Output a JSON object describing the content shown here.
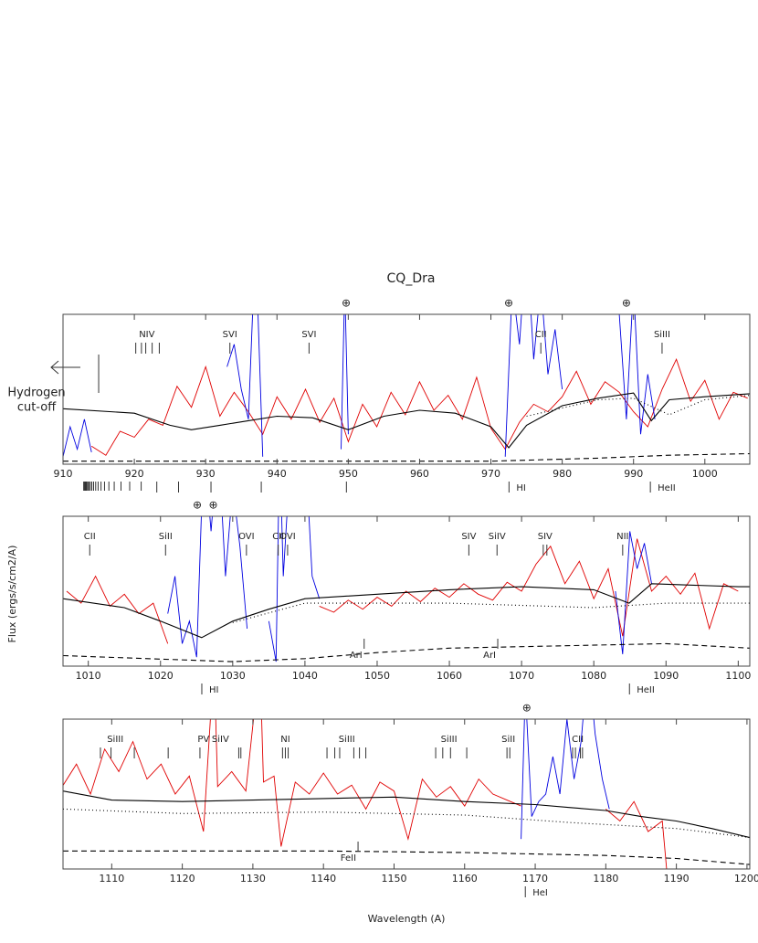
{
  "title": "CQ_Dra",
  "ylabel": "Flux (ergs/s/cm2/A)",
  "xlabel": "Wavelength (A)",
  "hydrogen_cutoff": {
    "label": [
      "Hydrogen",
      "cut-off"
    ],
    "x": 915
  },
  "chart_data": [
    {
      "type": "line",
      "xlim": [
        910,
        1006.3
      ],
      "ylim": [
        0,
        10
      ],
      "xticks": [
        910,
        920,
        930,
        940,
        950,
        960,
        970,
        980,
        990,
        1000
      ],
      "series": [
        {
          "color": "#e00000",
          "style": "solid",
          "x": [
            914,
            916,
            918,
            920,
            922,
            924,
            926,
            928,
            930,
            932,
            934,
            936,
            938,
            940,
            942,
            944,
            946,
            948,
            950,
            952,
            954,
            956,
            958,
            960,
            962,
            964,
            966,
            968,
            970,
            972,
            974,
            976,
            978,
            980,
            982,
            984,
            986,
            988,
            990,
            992,
            994,
            996,
            998,
            1000,
            1002,
            1004,
            1006
          ],
          "values": [
            1.2,
            0.6,
            2.2,
            1.8,
            3.0,
            2.6,
            5.2,
            3.8,
            6.5,
            3.2,
            4.8,
            3.5,
            2.0,
            4.5,
            3.0,
            5.0,
            2.8,
            4.4,
            1.5,
            4.0,
            2.5,
            4.8,
            3.3,
            5.5,
            3.6,
            4.6,
            3.0,
            5.8,
            2.4,
            1.0,
            2.8,
            4.0,
            3.5,
            4.5,
            6.2,
            4.0,
            5.5,
            4.8,
            3.5,
            2.5,
            5.0,
            7.0,
            4.2,
            5.6,
            3.0,
            4.8,
            4.4
          ]
        },
        {
          "color": "#0000e0",
          "style": "solid",
          "x": [
            910,
            911,
            912,
            913,
            914,
            915,
            933,
            934,
            935,
            936,
            937,
            938,
            939,
            949,
            949.5,
            950,
            951,
            972,
            973,
            974,
            975,
            976,
            977,
            978,
            979,
            980,
            981,
            988,
            989,
            990,
            991,
            992,
            993,
            994
          ],
          "values": [
            0.5,
            2.5,
            1.0,
            3.0,
            0.8,
            null,
            6.5,
            8.0,
            5.0,
            3.0,
            15,
            0.5,
            null,
            1.0,
            12,
            2.0,
            null,
            0.5,
            12,
            8,
            15,
            7,
            12,
            6,
            9,
            5,
            null,
            10,
            3,
            12,
            2,
            6,
            3,
            null
          ]
        },
        {
          "color": "#000000",
          "style": "solid",
          "x": [
            910,
            920,
            925,
            928,
            932,
            936,
            940,
            945,
            950,
            955,
            960,
            965,
            970,
            972.5,
            975,
            980,
            985,
            990,
            992.5,
            995,
            1000,
            1006.3
          ],
          "values": [
            3.7,
            3.4,
            2.6,
            2.3,
            2.6,
            2.9,
            3.2,
            3.1,
            2.3,
            3.2,
            3.6,
            3.4,
            2.5,
            1.1,
            2.6,
            3.9,
            4.4,
            4.75,
            2.9,
            4.3,
            4.5,
            4.7
          ]
        },
        {
          "color": "#000000",
          "style": "dotted",
          "x": [
            975,
            985,
            990,
            995,
            1000,
            1006.3
          ],
          "values": [
            3.2,
            4.3,
            4.4,
            3.3,
            4.3,
            4.6
          ]
        },
        {
          "color": "#000000",
          "style": "dashed",
          "x": [
            910,
            940,
            970,
            985,
            995,
            1006.3
          ],
          "values": [
            0.2,
            0.2,
            0.2,
            0.4,
            0.6,
            0.7
          ]
        }
      ],
      "lines_above": [
        {
          "label": "NIV",
          "x": [
            920.2,
            921,
            921.6,
            922.5,
            923.5
          ]
        },
        {
          "label": "SVI",
          "x": [
            933.4
          ]
        },
        {
          "label": "SVI",
          "x": [
            944.5
          ]
        },
        {
          "label": "CII",
          "x": [
            977
          ]
        },
        {
          "label": "SiIII",
          "x": [
            994
          ]
        }
      ],
      "telluric": {
        "label": "⊕",
        "x": [
          949.7,
          972.5,
          989
        ]
      },
      "lines_low": [],
      "lines_below": [
        {
          "label": "HI",
          "x": [
            972.54,
            949.74,
            937.8,
            930.75,
            926.2,
            923.15,
            920.96,
            919.35,
            918.13,
            917.18,
            916.43,
            915.82,
            915.33,
            914.92,
            914.58,
            914.29,
            914.04,
            913.83,
            913.64,
            913.48,
            913.33,
            913.2,
            913.09,
            912.99,
            912.9
          ]
        },
        {
          "label": "HeII",
          "x": [
            992.36
          ]
        }
      ]
    },
    {
      "type": "line",
      "xlim": [
        1006.5,
        1101.6
      ],
      "ylim": [
        0,
        10
      ],
      "xticks": [
        1010,
        1020,
        1030,
        1040,
        1050,
        1060,
        1070,
        1080,
        1090,
        1100
      ],
      "series": [
        {
          "color": "#e00000",
          "style": "solid",
          "x": [
            1007,
            1009,
            1011,
            1013,
            1015,
            1017,
            1019,
            1021,
            1023,
            1042,
            1044,
            1046,
            1048,
            1050,
            1052,
            1054,
            1056,
            1058,
            1060,
            1062,
            1064,
            1066,
            1068,
            1070,
            1072,
            1074,
            1076,
            1078,
            1080,
            1082,
            1084,
            1086,
            1088,
            1090,
            1092,
            1094,
            1096,
            1098,
            1100
          ],
          "values": [
            5.0,
            4.2,
            6.0,
            4.0,
            4.8,
            3.5,
            4.2,
            1.5,
            null,
            4.0,
            3.6,
            4.4,
            3.8,
            4.6,
            4.0,
            5.0,
            4.3,
            5.2,
            4.6,
            5.5,
            4.8,
            4.4,
            5.6,
            5.0,
            6.8,
            8.0,
            5.5,
            7.0,
            4.5,
            6.5,
            2.0,
            8.5,
            5.0,
            6.0,
            4.8,
            6.2,
            2.5,
            5.5,
            5.0
          ]
        },
        {
          "color": "#0000e0",
          "style": "solid",
          "x": [
            1021,
            1022,
            1023,
            1024,
            1025,
            1026,
            1027,
            1028,
            1029,
            1030,
            1031,
            1032,
            1033,
            1035,
            1036,
            1036.5,
            1037,
            1038,
            1039,
            1040,
            1041,
            1042,
            1043,
            1083,
            1084,
            1085,
            1086,
            1087,
            1088
          ],
          "values": [
            3.5,
            6,
            1.5,
            3,
            0.6,
            15,
            9,
            15,
            6,
            12,
            8,
            2.5,
            null,
            3,
            0.3,
            15,
            6,
            14,
            10,
            15,
            6,
            4.5,
            null,
            5,
            0.8,
            9,
            6.5,
            8.2,
            5.5
          ]
        },
        {
          "color": "#000000",
          "style": "solid",
          "x": [
            1006.5,
            1015,
            1020,
            1025.7,
            1030,
            1035,
            1040,
            1050,
            1060,
            1070,
            1080,
            1084.9,
            1088,
            1100,
            1101.6
          ],
          "values": [
            4.5,
            3.9,
            3.0,
            1.9,
            3.0,
            3.8,
            4.5,
            4.8,
            5.1,
            5.3,
            5.1,
            4.2,
            5.5,
            5.3,
            5.3
          ]
        },
        {
          "color": "#000000",
          "style": "dotted",
          "x": [
            1030,
            1040,
            1060,
            1080,
            1090,
            1101.6
          ],
          "values": [
            2.9,
            4.2,
            4.2,
            3.9,
            4.2,
            4.2
          ]
        },
        {
          "color": "#000000",
          "style": "dashed",
          "x": [
            1006.5,
            1030,
            1040,
            1050,
            1060,
            1070,
            1090,
            1101.6
          ],
          "values": [
            0.7,
            0.3,
            0.5,
            0.9,
            1.2,
            1.3,
            1.5,
            1.2
          ]
        }
      ],
      "lines_above": [
        {
          "label": "CII",
          "x": [
            1010.2
          ]
        },
        {
          "label": "SiII",
          "x": [
            1020.7
          ]
        },
        {
          "label": "OVI",
          "x": [
            1031.9
          ]
        },
        {
          "label": "CII",
          "x": [
            1036.3
          ]
        },
        {
          "label": "OVI",
          "x": [
            1037.6
          ]
        },
        {
          "label": "SIV",
          "x": [
            1062.7
          ]
        },
        {
          "label": "SiIV",
          "x": [
            1066.6
          ]
        },
        {
          "label": "SIV",
          "x": [
            1073.0,
            1073.5
          ]
        },
        {
          "label": "NII",
          "x": [
            1084
          ]
        }
      ],
      "telluric": {
        "label": "⊕",
        "x": [
          1025.1,
          1027.3
        ]
      },
      "lines_low": [
        {
          "label": "ArI",
          "x": [
            1048.2
          ]
        },
        {
          "label": "ArI",
          "x": [
            1066.7
          ]
        }
      ],
      "lines_below": [
        {
          "label": "HI",
          "x": [
            1025.72
          ]
        },
        {
          "label": "HeII",
          "x": [
            1084.94
          ]
        }
      ]
    },
    {
      "type": "line",
      "xlim": [
        1103.1,
        1200.4
      ],
      "ylim": [
        0,
        10
      ],
      "xticks": [
        1110,
        1120,
        1130,
        1140,
        1150,
        1160,
        1170,
        1180,
        1190,
        1200
      ],
      "series": [
        {
          "color": "#e00000",
          "style": "solid",
          "x": [
            1103,
            1105,
            1107,
            1109,
            1111,
            1113,
            1115,
            1117,
            1119,
            1121,
            1123,
            1124.5,
            1125,
            1127,
            1129,
            1131,
            1131.5,
            1133,
            1134,
            1136,
            1138,
            1140,
            1142,
            1144,
            1146,
            1148,
            1150,
            1152,
            1154,
            1156,
            1158,
            1160,
            1162,
            1164,
            1166,
            1168,
            1170,
            1180,
            1182,
            1184,
            1186,
            1188,
            1189,
            1190
          ],
          "values": [
            5.5,
            7.0,
            5.0,
            8.0,
            6.5,
            8.5,
            6.0,
            7.0,
            5.0,
            6.2,
            2.5,
            14,
            5.5,
            6.5,
            5.2,
            14,
            5.8,
            6.2,
            1.5,
            5.8,
            5.0,
            6.4,
            5.0,
            5.6,
            4.0,
            5.8,
            5.2,
            2.0,
            6.0,
            4.8,
            5.5,
            4.2,
            6.0,
            5.0,
            4.6,
            4.2,
            null,
            4.0,
            3.2,
            4.5,
            2.5,
            3.2,
            -2,
            null
          ]
        },
        {
          "color": "#0000e0",
          "style": "solid",
          "x": [
            1168,
            1168.6,
            1169.5,
            1170.5,
            1171.5,
            1172.5,
            1173.5,
            1174.5,
            1175.5,
            1176.5,
            1177.5,
            1178.5,
            1179.5,
            1180.5
          ],
          "values": [
            2,
            12,
            3.5,
            4.5,
            5.0,
            7.5,
            5,
            10,
            6,
            8.5,
            14,
            9,
            6,
            4.0
          ]
        },
        {
          "color": "#000000",
          "style": "solid",
          "x": [
            1103.1,
            1110,
            1120,
            1130,
            1140,
            1150,
            1160,
            1170,
            1175,
            1180,
            1185,
            1190,
            1195,
            1200.4
          ],
          "values": [
            5.2,
            4.6,
            4.5,
            4.6,
            4.7,
            4.8,
            4.5,
            4.3,
            4.1,
            3.9,
            3.5,
            3.2,
            2.7,
            2.1
          ]
        },
        {
          "color": "#000000",
          "style": "dotted",
          "x": [
            1103.1,
            1120,
            1140,
            1160,
            1175,
            1190,
            1200.4
          ],
          "values": [
            4.0,
            3.7,
            3.8,
            3.6,
            3.1,
            2.7,
            2.1
          ]
        },
        {
          "color": "#000000",
          "style": "dashed",
          "x": [
            1103.1,
            1140,
            1160,
            1180,
            1190,
            1200.4
          ],
          "values": [
            1.2,
            1.2,
            1.1,
            0.9,
            0.7,
            0.3
          ]
        }
      ],
      "lines_above": [
        {
          "label": "SiIII",
          "x": [
            1108.4,
            1109.9,
            1113.2
          ]
        },
        {
          "label": "PV",
          "x": [
            1118.0,
            1128.0
          ]
        },
        {
          "label": "SiIV",
          "x": [
            1122.5,
            1128.3
          ]
        },
        {
          "label": "NI",
          "x": [
            1134.2,
            1134.6,
            1135.0
          ]
        },
        {
          "label": "SiIII",
          "x": [
            1140.5,
            1141.6,
            1142.3,
            1144.3,
            1145.1,
            1146.0
          ]
        },
        {
          "label": "SiIII",
          "x": [
            1155.9,
            1156.9,
            1158.0,
            1160.3
          ]
        },
        {
          "label": "SiII",
          "x": [
            1166.0,
            1166.4
          ]
        },
        {
          "label": "CII",
          "x": [
            1175.3,
            1175.7,
            1176.4,
            1176.7
          ]
        }
      ],
      "telluric": {
        "label": "⊕",
        "x": [
          1168.8
        ]
      },
      "lines_low": [
        {
          "label": "FeII",
          "x": [
            1144.9
          ]
        }
      ],
      "lines_below": [
        {
          "label": "HeI",
          "x": [
            1168.6
          ]
        }
      ]
    }
  ]
}
